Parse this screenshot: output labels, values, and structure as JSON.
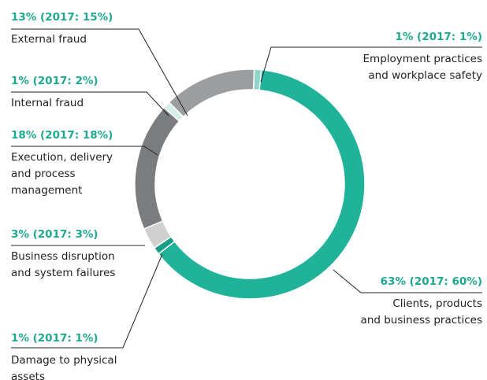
{
  "chart_data": {
    "type": "pie",
    "donut": true,
    "categories": [
      "Employment practices\nand workplace safety",
      "Clients, products\nand business practices",
      "Damage to physical\nassets",
      "Business disruption\nand system failures",
      "Execution, delivery\nand process\nmanagement",
      "Internal fraud",
      "External fraud"
    ],
    "values": [
      1,
      63,
      1,
      3,
      18,
      1,
      13
    ],
    "value_labels": [
      "1% (2017: 1%)",
      "63% (2017: 60%)",
      "1% (2017: 1%)",
      "3% (2017: 3%)",
      "18% (2017: 18%)",
      "1% (2017: 2%)",
      "13% (2017: 15%)"
    ],
    "colors": [
      "#8fd6c8",
      "#20b39a",
      "#179d87",
      "#d0d0d0",
      "#7b7c7e",
      "#d6eee8",
      "#9c9d9f"
    ]
  }
}
